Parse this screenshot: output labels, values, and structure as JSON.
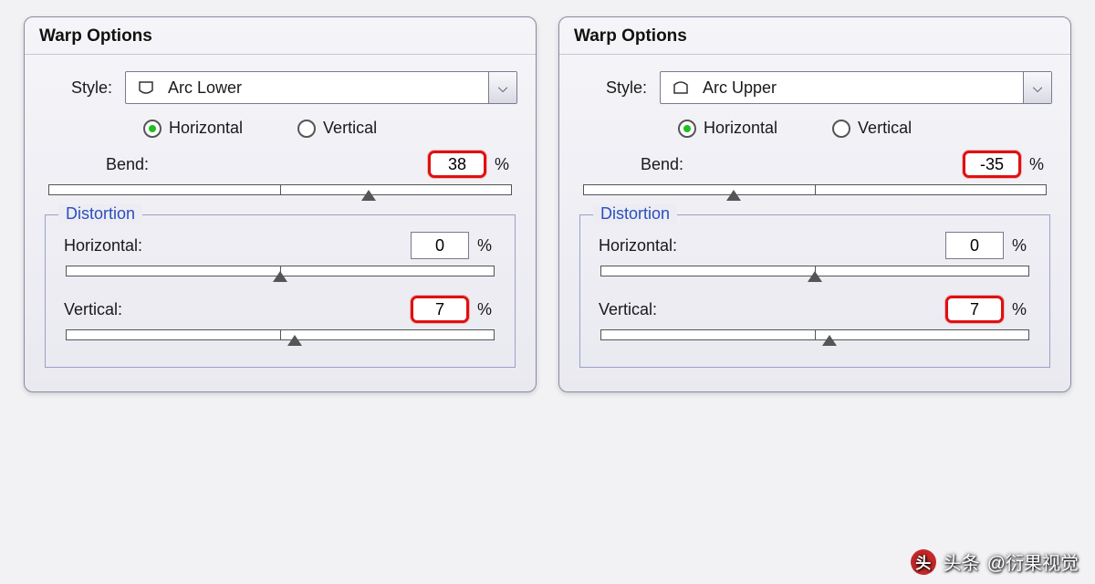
{
  "panels": [
    {
      "title": "Warp Options",
      "style_label": "Style:",
      "style_name": "Arc Lower",
      "style_icon": "arc_lower",
      "orientation": {
        "horizontal_label": "Horizontal",
        "vertical_label": "Vertical",
        "selected": "horizontal"
      },
      "bend": {
        "label": "Bend:",
        "value": "38",
        "unit": "%",
        "highlight": true,
        "slider_min": -100,
        "slider_max": 100,
        "slider_value": 38
      },
      "distortion": {
        "legend": "Distortion",
        "horizontal": {
          "label": "Horizontal:",
          "value": "0",
          "unit": "%",
          "highlight": false,
          "slider_min": -100,
          "slider_max": 100,
          "slider_value": 0
        },
        "vertical": {
          "label": "Vertical:",
          "value": "7",
          "unit": "%",
          "highlight": true,
          "slider_min": -100,
          "slider_max": 100,
          "slider_value": 7
        }
      }
    },
    {
      "title": "Warp Options",
      "style_label": "Style:",
      "style_name": "Arc Upper",
      "style_icon": "arc_upper",
      "orientation": {
        "horizontal_label": "Horizontal",
        "vertical_label": "Vertical",
        "selected": "horizontal"
      },
      "bend": {
        "label": "Bend:",
        "value": "-35",
        "unit": "%",
        "highlight": true,
        "slider_min": -100,
        "slider_max": 100,
        "slider_value": -35
      },
      "distortion": {
        "legend": "Distortion",
        "horizontal": {
          "label": "Horizontal:",
          "value": "0",
          "unit": "%",
          "highlight": false,
          "slider_min": -100,
          "slider_max": 100,
          "slider_value": 0
        },
        "vertical": {
          "label": "Vertical:",
          "value": "7",
          "unit": "%",
          "highlight": true,
          "slider_min": -100,
          "slider_max": 100,
          "slider_value": 7
        }
      }
    }
  ],
  "colors": {
    "panel_bg_top": "#f5f5f9",
    "panel_bg_bottom": "#e9e9f0",
    "panel_border": "#8a8aa0",
    "fieldset_border": "#9aa0c8",
    "legend_color": "#2a4fbf",
    "radio_selected": "#1fbf1f",
    "highlight_border": "#e01010",
    "text": "#1a1a1a",
    "slider_border": "#555555"
  },
  "watermark": {
    "prefix": "头条",
    "text": "@衍果视觉",
    "logo_bg": "#c62828",
    "logo_text": "头"
  }
}
